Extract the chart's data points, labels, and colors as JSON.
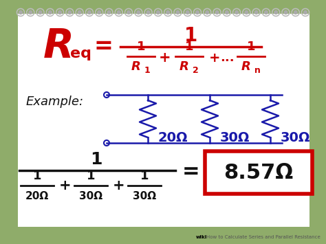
{
  "bg_color": "#8fac6a",
  "paper_color": "#ffffff",
  "red_color": "#cc0000",
  "blue_color": "#1a1aaa",
  "black_color": "#111111",
  "green_border": "#7aaa5a",
  "result": "8.57Ω",
  "example_label": "Example:",
  "resistors_top": [
    "20Ω",
    "30Ω",
    "30Ω"
  ],
  "result_box_color": "#cc0000",
  "footer": "How to Calculate Series and Parallel Resistance"
}
